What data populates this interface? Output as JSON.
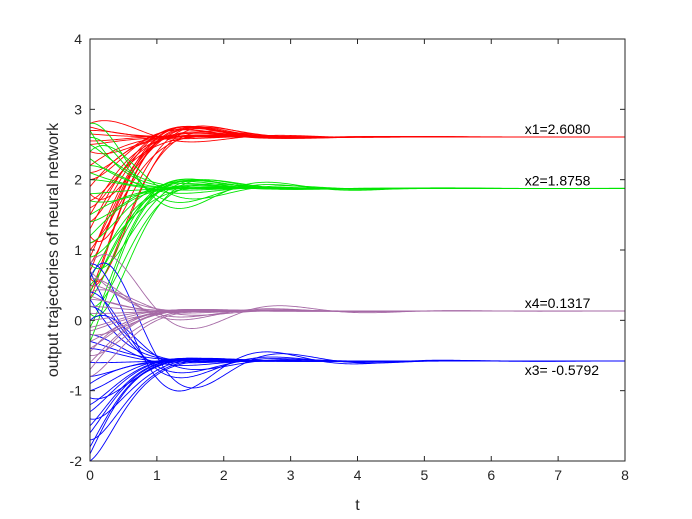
{
  "chart_data": {
    "type": "line",
    "title": "",
    "xlabel": "t",
    "ylabel": "output trajectories of neural network",
    "xlim": [
      0,
      8
    ],
    "ylim": [
      -2,
      4
    ],
    "xticks": [
      "0",
      "1",
      "2",
      "3",
      "4",
      "5",
      "6",
      "7",
      "8"
    ],
    "yticks": [
      "-2",
      "-1",
      "0",
      "1",
      "2",
      "3",
      "4"
    ],
    "grid": false,
    "legend": "none",
    "series_colors": {
      "x1": "#ff0000",
      "x2": "#00e600",
      "x3": "#0000ff",
      "x4": "#a66aa6"
    },
    "series": [
      {
        "equilibrium": 2.608,
        "color": "#ff0000",
        "initial_values": [
          2.8,
          2.7,
          2.55,
          2.4,
          2.1,
          2.0,
          1.8,
          1.6,
          1.4,
          1.2,
          1.0,
          0.8,
          0.6,
          0.4,
          0.3,
          0.5,
          0.7,
          0.9,
          1.1,
          1.3,
          1.5,
          1.7,
          1.9,
          2.2,
          2.5,
          2.65,
          2.75
        ]
      },
      {
        "equilibrium": 1.8758,
        "color": "#00e600",
        "initial_values": [
          2.8,
          2.6,
          2.4,
          2.2,
          2.0,
          1.7,
          1.4,
          1.1,
          0.8,
          0.5,
          0.3,
          0.1,
          -0.1,
          -0.3,
          0.2,
          0.4,
          0.6,
          0.9,
          1.2,
          1.5,
          1.8,
          2.1,
          2.3,
          2.5,
          2.7
        ]
      },
      {
        "equilibrium": -0.5792,
        "color": "#0000ff",
        "initial_values": [
          0.8,
          0.6,
          0.4,
          0.2,
          0.0,
          -0.2,
          -0.4,
          -0.6,
          -0.8,
          -1.0,
          -1.1,
          -1.2,
          -1.3,
          -1.4,
          -1.5,
          -1.6,
          -1.7,
          -1.8,
          -1.9,
          -2.0,
          0.7,
          0.3,
          -0.3,
          -0.9
        ]
      },
      {
        "equilibrium": 0.1317,
        "color": "#a66aa6",
        "initial_values": [
          0.8,
          0.6,
          0.5,
          0.4,
          0.3,
          0.2,
          0.1,
          0.0,
          -0.1,
          -0.2,
          -0.3,
          -0.4,
          -0.5,
          -0.6,
          -0.7,
          -0.8,
          0.7,
          0.35,
          -0.15,
          -0.45
        ]
      }
    ],
    "annotations": [
      {
        "text": "x1=2.6080",
        "x": 6.5,
        "y": 2.608
      },
      {
        "text": "x2=1.8758",
        "x": 6.5,
        "y": 1.8758
      },
      {
        "text": "x4=0.1317",
        "x": 6.5,
        "y": 0.1317
      },
      {
        "text": "x3= -0.5792",
        "x": 6.5,
        "y": -0.5792
      }
    ]
  }
}
